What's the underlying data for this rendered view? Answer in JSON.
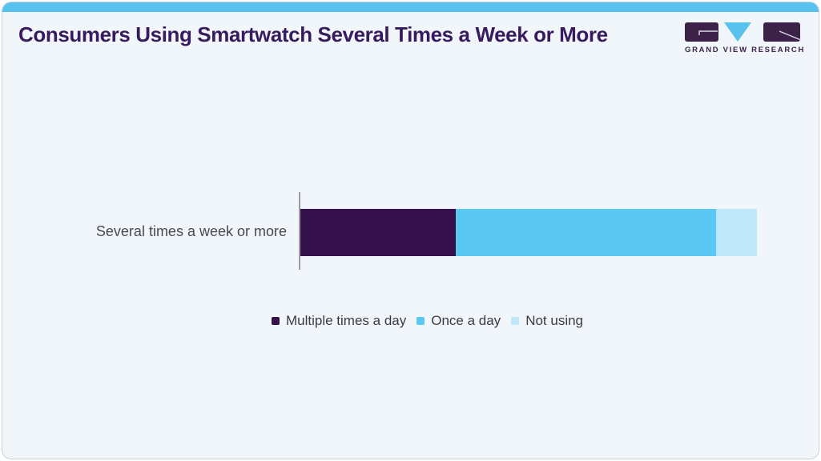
{
  "header": {
    "title": "Consumers Using Smartwatch Several Times a Week or More",
    "logo_text": "GRAND VIEW RESEARCH"
  },
  "colors": {
    "header_bar": "#57C2ED",
    "card_bg": "#F1F6FA",
    "card_border": "#C8D1DB",
    "title": "#381A5F",
    "logo_purple": "#3C2249",
    "logo_blue": "#57C2ED",
    "logo_glyph_line": "#D9DAE4",
    "axis_line": "#9B9BA3",
    "label_text": "#4A4951",
    "legend_text": "#3C3B44",
    "segment_multiple_times_a_day": "#36114B",
    "segment_once_a_day": "#5BC8F3",
    "segment_not_using": "#BEE8F9"
  },
  "chart_data": {
    "type": "bar",
    "orientation": "horizontal",
    "stacked": true,
    "title": "Consumers Using Smartwatch Several Times a Week or More",
    "categories": [
      "Several times a week or more"
    ],
    "series": [
      {
        "name": "Multiple times a day",
        "values": [
          34
        ],
        "color": "#36114B"
      },
      {
        "name": "Once a day",
        "values": [
          57
        ],
        "color": "#5BC8F3"
      },
      {
        "name": "Not using",
        "values": [
          9
        ],
        "color": "#BEE8F9"
      }
    ],
    "xlabel": "",
    "ylabel": "",
    "xlim": [
      0,
      100
    ],
    "grid": false,
    "legend_position": "bottom"
  }
}
